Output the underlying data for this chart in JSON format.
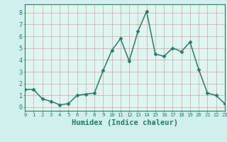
{
  "x": [
    0,
    1,
    2,
    3,
    4,
    5,
    6,
    7,
    8,
    9,
    10,
    11,
    12,
    13,
    14,
    15,
    16,
    17,
    18,
    19,
    20,
    21,
    22,
    23
  ],
  "y": [
    1.5,
    1.5,
    0.7,
    0.5,
    0.2,
    0.3,
    1.0,
    1.1,
    1.2,
    3.1,
    4.8,
    5.8,
    3.9,
    6.4,
    8.1,
    4.5,
    4.3,
    5.0,
    4.7,
    5.5,
    3.2,
    1.2,
    1.0,
    0.3
  ],
  "line_color": "#2a7a6a",
  "marker": "D",
  "marker_size": 2.5,
  "bg_color": "#cff0ec",
  "grid_color_v": "#c8a0a0",
  "grid_color_h": "#c8a0a0",
  "xlabel": "Humidex (Indice chaleur)",
  "xlim": [
    0,
    23
  ],
  "ylim": [
    -0.3,
    8.7
  ],
  "yticks": [
    0,
    1,
    2,
    3,
    4,
    5,
    6,
    7,
    8
  ],
  "xticks": [
    0,
    1,
    2,
    3,
    4,
    5,
    6,
    7,
    8,
    9,
    10,
    11,
    12,
    13,
    14,
    15,
    16,
    17,
    18,
    19,
    20,
    21,
    22,
    23
  ],
  "axis_bg_color": "#dff5f2",
  "spine_color": "#2a7a6a",
  "tick_color": "#2a7a6a",
  "label_color": "#2a7a6a",
  "xlabel_fontsize": 7.5,
  "tick_fontsize_x": 5.2,
  "tick_fontsize_y": 6.0,
  "linewidth": 1.1
}
